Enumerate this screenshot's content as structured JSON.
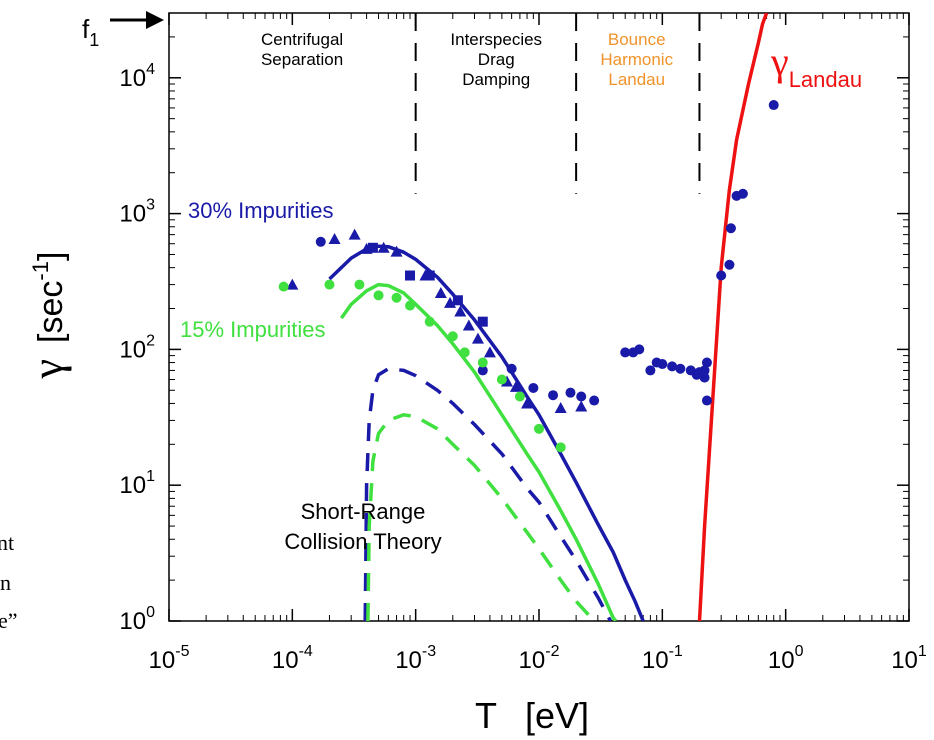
{
  "chart_data": {
    "type": "scatter",
    "x_scale": "log",
    "y_scale": "log",
    "xlim": [
      1e-05,
      10
    ],
    "ylim": [
      1,
      30000
    ],
    "x_ticks": [
      {
        "value": 1e-05,
        "base": "10",
        "exp": "-5"
      },
      {
        "value": 0.0001,
        "base": "10",
        "exp": "-4"
      },
      {
        "value": 0.001,
        "base": "10",
        "exp": "-3"
      },
      {
        "value": 0.01,
        "base": "10",
        "exp": "-2"
      },
      {
        "value": 0.1,
        "base": "10",
        "exp": "-1"
      },
      {
        "value": 1,
        "base": "10",
        "exp": "0"
      },
      {
        "value": 10,
        "base": "10",
        "exp": "1"
      }
    ],
    "y_ticks": [
      {
        "value": 1,
        "base": "10",
        "exp": "0"
      },
      {
        "value": 10,
        "base": "10",
        "exp": "1"
      },
      {
        "value": 100,
        "base": "10",
        "exp": "2"
      },
      {
        "value": 1000,
        "base": "10",
        "exp": "3"
      },
      {
        "value": 10000,
        "base": "10",
        "exp": "4"
      }
    ],
    "xlabel": {
      "symbol": "T",
      "unit": "[eV]"
    },
    "ylabel": {
      "symbol": "γ",
      "unit_open": "[sec",
      "unit_exp": "-1",
      "unit_close": "]"
    },
    "f1_label": {
      "base": "f",
      "sub": "1"
    },
    "f1_value": 30000,
    "regions": [
      {
        "lines": [
          "Centrifugal",
          "Separation"
        ],
        "color": "#000000",
        "x_center": 0.00012
      },
      {
        "lines": [
          "Interspecies",
          "Drag",
          "Damping"
        ],
        "color": "#000000",
        "x_center": 0.0045
      },
      {
        "lines": [
          "Bounce",
          "Harmonic",
          "Landau"
        ],
        "color": "#f0932a",
        "x_center": 0.062
      }
    ],
    "region_boundaries": [
      0.001,
      0.02,
      0.2
    ],
    "colors": {
      "blue": "#1a1aa8",
      "green": "#3fe03f",
      "red": "#ee1111",
      "orange": "#f0932a"
    },
    "annotations": {
      "imp30": "30% Impurities",
      "imp15": "15% Impurities",
      "short_range": [
        "Short-Range",
        "Collision Theory"
      ],
      "landau_symbol": "γ",
      "landau_sub": "Landau"
    },
    "series": [
      {
        "color": "#1a1aa8",
        "style": "solid",
        "points": [
          [
            0.0002,
            330
          ],
          [
            0.0003,
            470
          ],
          [
            0.0004,
            550
          ],
          [
            0.0005,
            575
          ],
          [
            0.0006,
            570
          ],
          [
            0.0008,
            520
          ],
          [
            0.001,
            460
          ],
          [
            0.0015,
            340
          ],
          [
            0.002,
            255
          ],
          [
            0.003,
            165
          ],
          [
            0.005,
            88
          ],
          [
            0.008,
            45
          ],
          [
            0.01,
            33
          ],
          [
            0.015,
            17
          ],
          [
            0.02,
            10.5
          ],
          [
            0.03,
            5.2
          ],
          [
            0.04,
            3.2
          ],
          [
            0.05,
            2.0
          ],
          [
            0.06,
            1.4
          ],
          [
            0.07,
            1.0
          ]
        ]
      },
      {
        "color": "#3fe03f",
        "style": "solid",
        "points": [
          [
            0.00025,
            170
          ],
          [
            0.0003,
            215
          ],
          [
            0.0004,
            270
          ],
          [
            0.0005,
            300
          ],
          [
            0.0006,
            295
          ],
          [
            0.0008,
            260
          ],
          [
            0.001,
            215
          ],
          [
            0.0015,
            150
          ],
          [
            0.002,
            110
          ],
          [
            0.003,
            68
          ],
          [
            0.005,
            33
          ],
          [
            0.008,
            17
          ],
          [
            0.01,
            12.5
          ],
          [
            0.015,
            6.5
          ],
          [
            0.02,
            4.0
          ],
          [
            0.03,
            1.9
          ],
          [
            0.04,
            1.05
          ],
          [
            0.042,
            1.0
          ]
        ]
      },
      {
        "color": "#1a1aa8",
        "style": "dashed",
        "points": [
          [
            0.00039,
            1.0
          ],
          [
            0.0004,
            10
          ],
          [
            0.00042,
            30
          ],
          [
            0.00045,
            50
          ],
          [
            0.0005,
            65
          ],
          [
            0.0006,
            72
          ],
          [
            0.0008,
            70
          ],
          [
            0.001,
            64
          ],
          [
            0.0015,
            50
          ],
          [
            0.002,
            40
          ],
          [
            0.003,
            28
          ],
          [
            0.005,
            17
          ],
          [
            0.008,
            9.5
          ],
          [
            0.01,
            7.5
          ],
          [
            0.015,
            4.2
          ],
          [
            0.02,
            2.8
          ],
          [
            0.03,
            1.5
          ],
          [
            0.038,
            1.0
          ]
        ]
      },
      {
        "color": "#3fe03f",
        "style": "dashed",
        "points": [
          [
            0.00041,
            1.0
          ],
          [
            0.00042,
            5
          ],
          [
            0.00045,
            15
          ],
          [
            0.0005,
            24
          ],
          [
            0.0006,
            30
          ],
          [
            0.0008,
            33
          ],
          [
            0.001,
            32
          ],
          [
            0.0015,
            26
          ],
          [
            0.002,
            20
          ],
          [
            0.003,
            14
          ],
          [
            0.005,
            8
          ],
          [
            0.008,
            4.5
          ],
          [
            0.01,
            3.4
          ],
          [
            0.015,
            2.0
          ],
          [
            0.02,
            1.4
          ],
          [
            0.028,
            1.0
          ]
        ]
      },
      {
        "color": "#ee1111",
        "style": "solid",
        "points": [
          [
            0.2,
            1.0
          ],
          [
            0.22,
            5
          ],
          [
            0.25,
            30
          ],
          [
            0.28,
            150
          ],
          [
            0.3,
            400
          ],
          [
            0.35,
            1500
          ],
          [
            0.4,
            3500
          ],
          [
            0.5,
            9000
          ],
          [
            0.6,
            18000
          ],
          [
            0.65,
            25000
          ],
          [
            0.7,
            30000
          ]
        ]
      }
    ],
    "blue_circles": [
      [
        0.00017,
        620
      ],
      [
        0.0035,
        70
      ],
      [
        0.006,
        72
      ],
      [
        0.009,
        52
      ],
      [
        0.013,
        46
      ],
      [
        0.018,
        48
      ],
      [
        0.022,
        45
      ],
      [
        0.028,
        42
      ],
      [
        0.05,
        95
      ],
      [
        0.058,
        95
      ],
      [
        0.065,
        100
      ],
      [
        0.08,
        70
      ],
      [
        0.09,
        80
      ],
      [
        0.1,
        78
      ],
      [
        0.12,
        75
      ],
      [
        0.14,
        72
      ],
      [
        0.17,
        70
      ],
      [
        0.19,
        65
      ],
      [
        0.2,
        68
      ],
      [
        0.22,
        70
      ],
      [
        0.23,
        80
      ],
      [
        0.22,
        62
      ],
      [
        0.23,
        42
      ],
      [
        0.3,
        350
      ],
      [
        0.35,
        420
      ],
      [
        0.36,
        780
      ],
      [
        0.4,
        1350
      ],
      [
        0.45,
        1400
      ],
      [
        0.8,
        6300
      ]
    ],
    "blue_triangles": [
      [
        0.0001,
        300
      ],
      [
        0.00022,
        650
      ],
      [
        0.00032,
        700
      ],
      [
        0.0004,
        550
      ],
      [
        0.00055,
        560
      ],
      [
        0.0007,
        525
      ],
      [
        0.0012,
        350
      ],
      [
        0.0016,
        260
      ],
      [
        0.0019,
        220
      ],
      [
        0.0023,
        190
      ],
      [
        0.0027,
        150
      ],
      [
        0.0032,
        120
      ],
      [
        0.004,
        95
      ],
      [
        0.0055,
        58
      ],
      [
        0.0065,
        53
      ],
      [
        0.008,
        40
      ],
      [
        0.015,
        37
      ],
      [
        0.022,
        38
      ]
    ],
    "blue_squares": [
      [
        0.00045,
        560
      ],
      [
        0.0009,
        350
      ],
      [
        0.0013,
        350
      ],
      [
        0.0022,
        230
      ],
      [
        0.0035,
        160
      ]
    ],
    "green_circles": [
      [
        8.5e-05,
        290
      ],
      [
        0.0002,
        300
      ],
      [
        0.00035,
        300
      ],
      [
        0.0005,
        250
      ],
      [
        0.0007,
        240
      ],
      [
        0.0009,
        210
      ],
      [
        0.0013,
        160
      ],
      [
        0.002,
        125
      ],
      [
        0.0025,
        95
      ],
      [
        0.0035,
        80
      ],
      [
        0.005,
        60
      ],
      [
        0.007,
        45
      ],
      [
        0.01,
        26
      ],
      [
        0.015,
        19
      ]
    ],
    "cutoff_fragments": [
      "nt",
      "n",
      "e”"
    ]
  }
}
